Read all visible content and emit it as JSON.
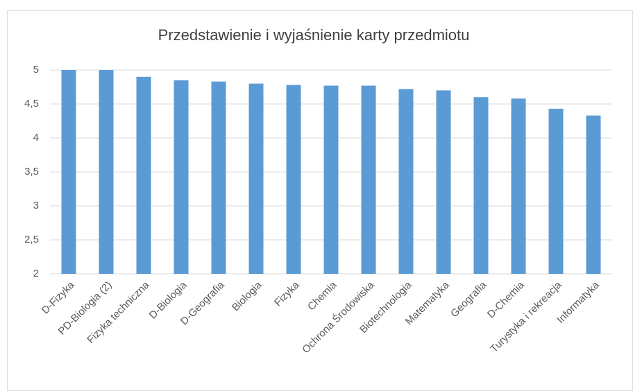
{
  "chart_data": {
    "type": "bar",
    "title": "Przedstawienie i wyjaśnienie karty przedmiotu",
    "categories": [
      "D-Fizyka",
      "PD-Biologia (2)",
      "Fizyka techniczna",
      "D-Biologia",
      "D-Geografia",
      "Biologia",
      "Fizyka",
      "Chemia",
      "Ochrona Środowiska",
      "Biotechnologia",
      "Matematyka",
      "Geografia",
      "D-Chemia",
      "Turystyka i rekreacja",
      "Informatyka"
    ],
    "values": [
      5,
      5,
      4.9,
      4.85,
      4.83,
      4.8,
      4.78,
      4.77,
      4.77,
      4.72,
      4.7,
      4.6,
      4.58,
      4.43,
      4.33
    ],
    "color": "#5b9bd5",
    "ylim": [
      2,
      5
    ],
    "yticks": [
      2,
      {
        "value": 2.5,
        "label": "2,5"
      },
      3,
      {
        "value": 3.5,
        "label": "3,5"
      },
      4,
      {
        "value": 4.5,
        "label": "4,5"
      },
      5
    ],
    "grid": true
  }
}
